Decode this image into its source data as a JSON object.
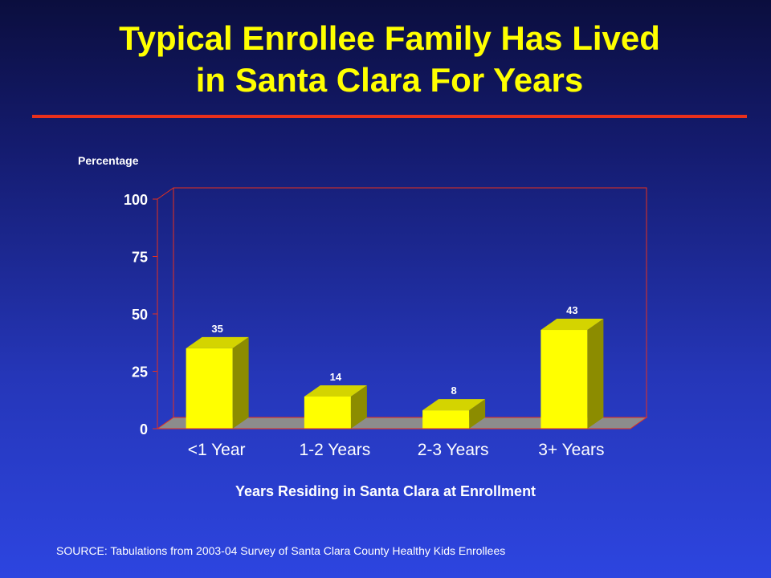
{
  "slide": {
    "title_line1": "Typical Enrollee Family Has Lived",
    "title_line2": "in Santa Clara For Years",
    "source": "SOURCE: Tabulations from 2003-04 Survey of Santa Clara County Healthy Kids Enrollees"
  },
  "colors": {
    "title": "#ffff00",
    "rule": "#e8301c",
    "bar_front": "#ffff00",
    "bar_side": "#8c8c00",
    "bar_top": "#d4d400",
    "axis": "#e8301c",
    "floor": "#8c8c8c"
  },
  "chart_data": {
    "type": "bar",
    "ylabel": "Percentage",
    "xlabel": "Years Residing in Santa Clara at Enrollment",
    "categories": [
      "<1 Year",
      "1-2 Years",
      "2-3 Years",
      "3+ Years"
    ],
    "values": [
      35,
      14,
      8,
      43
    ],
    "data_labels": [
      "35",
      "14",
      "8",
      "43"
    ],
    "ylim": [
      0,
      100
    ],
    "yticks": [
      0,
      25,
      50,
      75,
      100
    ],
    "ytick_labels": [
      "0",
      "25",
      "50",
      "75",
      "100"
    ],
    "grid": false,
    "legend": "none"
  }
}
